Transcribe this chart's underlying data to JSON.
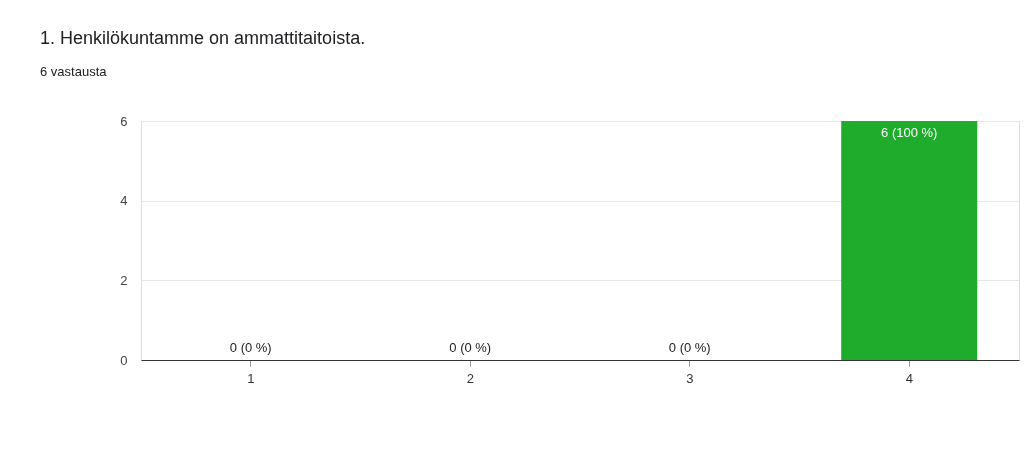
{
  "chart_data": {
    "type": "bar",
    "title": "1. Henkilökuntamme on ammattitaitoista.",
    "subtitle": "6 vastausta",
    "categories": [
      "1",
      "2",
      "3",
      "4"
    ],
    "values": [
      0,
      0,
      0,
      6
    ],
    "color": "#1fab2b",
    "value_labels": [
      "0 (0 %)",
      "0 (0 %)",
      "0 (0 %)",
      "6 (100 %)"
    ],
    "ylim": [
      0,
      6
    ],
    "yticks": [
      0,
      2,
      4,
      6
    ],
    "grid": "y"
  }
}
